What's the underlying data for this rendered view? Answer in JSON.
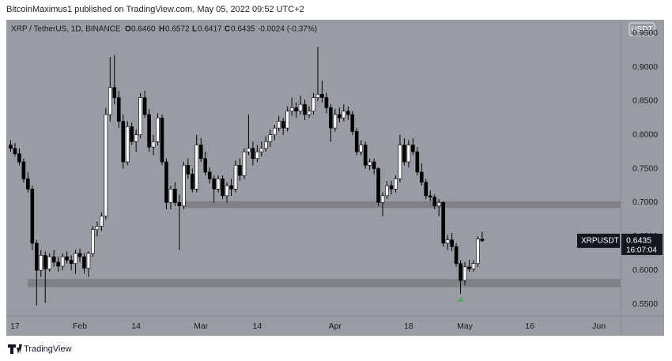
{
  "header": {
    "text": "BitcoinMaximus1 published on TradingView.com, May 05, 2022 09:52 UTC+2"
  },
  "footer": {
    "brand": "TradingView"
  },
  "chart_data": {
    "type": "candlestick",
    "symbol": "XRP / TetherUS, 1D, BINANCE",
    "legend": {
      "o_label": "O",
      "o": "0.6460",
      "h_label": "H",
      "h": "0.6572",
      "l_label": "L",
      "l": "0.6417",
      "c_label": "C",
      "c": "0.6435",
      "change": "-0.0024 (-0.37%)"
    },
    "currency_button": "USDT",
    "price_label": {
      "name": "XRPUSDT",
      "value": 0.6435,
      "label": "0.6435",
      "countdown": "16:07:04"
    },
    "up_color": "#ffffff",
    "down_color": "#000000",
    "x": [
      "Jan 16",
      "Jan 17",
      "Jan 18",
      "Jan 19",
      "Jan 20",
      "Jan 21",
      "Jan 22",
      "Jan 23",
      "Jan 24",
      "Jan 25",
      "Jan 26",
      "Jan 27",
      "Jan 28",
      "Jan 29",
      "Jan 30",
      "Jan 31",
      "Feb 1",
      "Feb 2",
      "Feb 3",
      "Feb 4",
      "Feb 5",
      "Feb 6",
      "Feb 7",
      "Feb 8",
      "Feb 9",
      "Feb 10",
      "Feb 11",
      "Feb 12",
      "Feb 13",
      "Feb 14",
      "Feb 15",
      "Feb 16",
      "Feb 17",
      "Feb 18",
      "Feb 19",
      "Feb 20",
      "Feb 21",
      "Feb 22",
      "Feb 23",
      "Feb 24",
      "Feb 25",
      "Feb 26",
      "Feb 27",
      "Feb 28",
      "Mar 1",
      "Mar 2",
      "Mar 3",
      "Mar 4",
      "Mar 5",
      "Mar 6",
      "Mar 7",
      "Mar 8",
      "Mar 9",
      "Mar 10",
      "Mar 11",
      "Mar 12",
      "Mar 13",
      "Mar 14",
      "Mar 15",
      "Mar 16",
      "Mar 17",
      "Mar 18",
      "Mar 19",
      "Mar 20",
      "Mar 21",
      "Mar 22",
      "Mar 23",
      "Mar 24",
      "Mar 25",
      "Mar 26",
      "Mar 27",
      "Mar 28",
      "Mar 29",
      "Mar 30",
      "Mar 31",
      "Apr 1",
      "Apr 2",
      "Apr 3",
      "Apr 4",
      "Apr 5",
      "Apr 6",
      "Apr 7",
      "Apr 8",
      "Apr 9",
      "Apr 10",
      "Apr 11",
      "Apr 12",
      "Apr 13",
      "Apr 14",
      "Apr 15",
      "Apr 16",
      "Apr 17",
      "Apr 18",
      "Apr 19",
      "Apr 20",
      "Apr 21",
      "Apr 22",
      "Apr 23",
      "Apr 24",
      "Apr 25",
      "Apr 26",
      "Apr 27",
      "Apr 28",
      "Apr 29",
      "Apr 30",
      "May 1",
      "May 2",
      "May 3",
      "May 4",
      "May 5"
    ],
    "ohlc": [
      [
        0.785,
        0.792,
        0.775,
        0.78
      ],
      [
        0.78,
        0.788,
        0.768,
        0.772
      ],
      [
        0.772,
        0.78,
        0.755,
        0.76
      ],
      [
        0.76,
        0.765,
        0.73,
        0.735
      ],
      [
        0.735,
        0.745,
        0.715,
        0.72
      ],
      [
        0.72,
        0.725,
        0.63,
        0.64
      ],
      [
        0.64,
        0.645,
        0.548,
        0.6
      ],
      [
        0.6,
        0.63,
        0.59,
        0.622
      ],
      [
        0.622,
        0.628,
        0.552,
        0.602
      ],
      [
        0.602,
        0.625,
        0.598,
        0.62
      ],
      [
        0.62,
        0.63,
        0.605,
        0.612
      ],
      [
        0.612,
        0.62,
        0.598,
        0.606
      ],
      [
        0.606,
        0.625,
        0.6,
        0.62
      ],
      [
        0.62,
        0.628,
        0.61,
        0.615
      ],
      [
        0.615,
        0.622,
        0.6,
        0.61
      ],
      [
        0.61,
        0.63,
        0.595,
        0.625
      ],
      [
        0.625,
        0.632,
        0.612,
        0.62
      ],
      [
        0.62,
        0.625,
        0.595,
        0.603
      ],
      [
        0.603,
        0.628,
        0.59,
        0.625
      ],
      [
        0.625,
        0.665,
        0.62,
        0.66
      ],
      [
        0.66,
        0.672,
        0.65,
        0.665
      ],
      [
        0.665,
        0.685,
        0.658,
        0.68
      ],
      [
        0.68,
        0.84,
        0.675,
        0.83
      ],
      [
        0.83,
        0.915,
        0.82,
        0.87
      ],
      [
        0.87,
        0.918,
        0.845,
        0.855
      ],
      [
        0.855,
        0.865,
        0.81,
        0.82
      ],
      [
        0.82,
        0.83,
        0.75,
        0.76
      ],
      [
        0.76,
        0.82,
        0.755,
        0.812
      ],
      [
        0.812,
        0.818,
        0.785,
        0.79
      ],
      [
        0.79,
        0.808,
        0.775,
        0.8
      ],
      [
        0.8,
        0.862,
        0.795,
        0.855
      ],
      [
        0.855,
        0.865,
        0.825,
        0.83
      ],
      [
        0.83,
        0.838,
        0.775,
        0.782
      ],
      [
        0.782,
        0.8,
        0.77,
        0.79
      ],
      [
        0.79,
        0.832,
        0.785,
        0.825
      ],
      [
        0.825,
        0.83,
        0.755,
        0.76
      ],
      [
        0.76,
        0.765,
        0.69,
        0.7
      ],
      [
        0.7,
        0.725,
        0.69,
        0.72
      ],
      [
        0.72,
        0.73,
        0.695,
        0.7
      ],
      [
        0.7,
        0.712,
        0.63,
        0.695
      ],
      [
        0.695,
        0.76,
        0.69,
        0.755
      ],
      [
        0.755,
        0.765,
        0.735,
        0.742
      ],
      [
        0.742,
        0.75,
        0.715,
        0.72
      ],
      [
        0.72,
        0.8,
        0.715,
        0.785
      ],
      [
        0.785,
        0.795,
        0.76,
        0.765
      ],
      [
        0.765,
        0.775,
        0.74,
        0.745
      ],
      [
        0.745,
        0.752,
        0.728,
        0.735
      ],
      [
        0.735,
        0.74,
        0.7,
        0.72
      ],
      [
        0.72,
        0.74,
        0.715,
        0.735
      ],
      [
        0.735,
        0.74,
        0.705,
        0.71
      ],
      [
        0.71,
        0.73,
        0.7,
        0.725
      ],
      [
        0.725,
        0.735,
        0.71,
        0.72
      ],
      [
        0.72,
        0.762,
        0.715,
        0.755
      ],
      [
        0.755,
        0.765,
        0.732,
        0.74
      ],
      [
        0.74,
        0.78,
        0.735,
        0.775
      ],
      [
        0.775,
        0.83,
        0.77,
        0.78
      ],
      [
        0.78,
        0.79,
        0.755,
        0.765
      ],
      [
        0.765,
        0.785,
        0.76,
        0.775
      ],
      [
        0.775,
        0.79,
        0.768,
        0.78
      ],
      [
        0.78,
        0.798,
        0.775,
        0.79
      ],
      [
        0.79,
        0.808,
        0.782,
        0.8
      ],
      [
        0.8,
        0.815,
        0.792,
        0.81
      ],
      [
        0.81,
        0.828,
        0.805,
        0.82
      ],
      [
        0.82,
        0.825,
        0.8,
        0.81
      ],
      [
        0.81,
        0.842,
        0.805,
        0.835
      ],
      [
        0.835,
        0.855,
        0.828,
        0.84
      ],
      [
        0.84,
        0.848,
        0.825,
        0.835
      ],
      [
        0.835,
        0.858,
        0.83,
        0.845
      ],
      [
        0.845,
        0.852,
        0.822,
        0.83
      ],
      [
        0.83,
        0.842,
        0.825,
        0.835
      ],
      [
        0.835,
        0.862,
        0.83,
        0.855
      ],
      [
        0.855,
        0.93,
        0.85,
        0.86
      ],
      [
        0.86,
        0.88,
        0.848,
        0.855
      ],
      [
        0.855,
        0.862,
        0.832,
        0.84
      ],
      [
        0.84,
        0.845,
        0.79,
        0.81
      ],
      [
        0.81,
        0.838,
        0.805,
        0.83
      ],
      [
        0.83,
        0.84,
        0.818,
        0.825
      ],
      [
        0.825,
        0.845,
        0.82,
        0.835
      ],
      [
        0.835,
        0.842,
        0.822,
        0.83
      ],
      [
        0.83,
        0.835,
        0.8,
        0.805
      ],
      [
        0.805,
        0.81,
        0.77,
        0.775
      ],
      [
        0.775,
        0.792,
        0.77,
        0.785
      ],
      [
        0.785,
        0.79,
        0.75,
        0.755
      ],
      [
        0.755,
        0.765,
        0.748,
        0.76
      ],
      [
        0.76,
        0.765,
        0.742,
        0.75
      ],
      [
        0.75,
        0.752,
        0.695,
        0.7
      ],
      [
        0.7,
        0.715,
        0.68,
        0.71
      ],
      [
        0.71,
        0.732,
        0.705,
        0.725
      ],
      [
        0.725,
        0.732,
        0.712,
        0.72
      ],
      [
        0.72,
        0.74,
        0.715,
        0.735
      ],
      [
        0.735,
        0.8,
        0.73,
        0.785
      ],
      [
        0.785,
        0.795,
        0.755,
        0.76
      ],
      [
        0.76,
        0.792,
        0.752,
        0.785
      ],
      [
        0.785,
        0.795,
        0.77,
        0.775
      ],
      [
        0.775,
        0.782,
        0.74,
        0.745
      ],
      [
        0.745,
        0.758,
        0.725,
        0.73
      ],
      [
        0.73,
        0.735,
        0.705,
        0.71
      ],
      [
        0.71,
        0.718,
        0.702,
        0.708
      ],
      [
        0.708,
        0.712,
        0.69,
        0.695
      ],
      [
        0.695,
        0.705,
        0.68,
        0.7
      ],
      [
        0.7,
        0.702,
        0.635,
        0.64
      ],
      [
        0.64,
        0.652,
        0.63,
        0.645
      ],
      [
        0.645,
        0.655,
        0.628,
        0.635
      ],
      [
        0.635,
        0.64,
        0.605,
        0.61
      ],
      [
        0.61,
        0.615,
        0.565,
        0.585
      ],
      [
        0.585,
        0.612,
        0.578,
        0.605
      ],
      [
        0.605,
        0.615,
        0.598,
        0.602
      ],
      [
        0.602,
        0.615,
        0.598,
        0.61
      ],
      [
        0.61,
        0.65,
        0.605,
        0.646
      ],
      [
        0.646,
        0.6572,
        0.6417,
        0.6435
      ]
    ],
    "zones": [
      {
        "from": 0.575,
        "to": 0.587,
        "start": "Jan 20",
        "color": "#7a7c83"
      },
      {
        "from": 0.692,
        "to": 0.702,
        "start": "Feb 25",
        "color": "#7a7c83"
      }
    ],
    "marker": {
      "x": "Apr 30",
      "y": 0.557,
      "color": "#4caf50"
    },
    "xlim": [
      "Jan 15",
      "Jun 6"
    ],
    "xticks": [
      {
        "value": "Jan 17",
        "label": "17"
      },
      {
        "value": "Feb 1",
        "label": "Feb"
      },
      {
        "value": "Feb 14",
        "label": "14"
      },
      {
        "value": "Mar 1",
        "label": "Mar"
      },
      {
        "value": "Mar 14",
        "label": "14"
      },
      {
        "value": "Apr 1",
        "label": "Apr"
      },
      {
        "value": "Apr 18",
        "label": "18"
      },
      {
        "value": "May 1",
        "label": "May"
      },
      {
        "value": "May 16",
        "label": "16"
      },
      {
        "value": "Jun 1",
        "label": "Jun"
      }
    ],
    "ylim": [
      0.5325,
      0.97
    ],
    "yticks": [
      {
        "value": 0.95,
        "label": "0.9500"
      },
      {
        "value": 0.9,
        "label": "0.9000"
      },
      {
        "value": 0.85,
        "label": "0.8500"
      },
      {
        "value": 0.8,
        "label": "0.8000"
      },
      {
        "value": 0.75,
        "label": "0.7500"
      },
      {
        "value": 0.7,
        "label": "0.7000"
      },
      {
        "value": 0.65,
        "label": "0.6500"
      },
      {
        "value": 0.6,
        "label": "0.6000"
      },
      {
        "value": 0.55,
        "label": "0.5500"
      }
    ]
  }
}
